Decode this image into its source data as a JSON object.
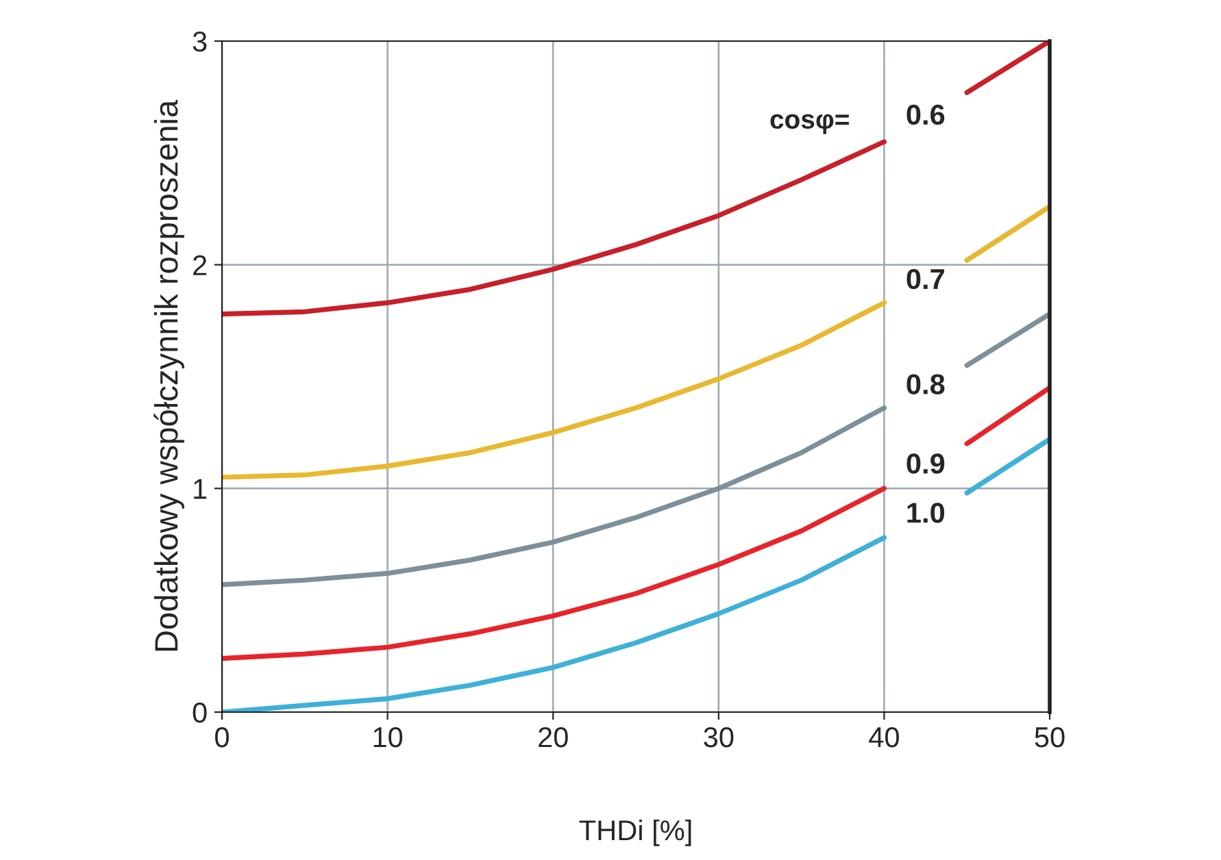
{
  "chart_data": {
    "type": "line",
    "xlabel": "THDi [%]",
    "ylabel": "Dodatkowy współczynnik rozproszenia",
    "x": [
      0,
      5,
      10,
      15,
      20,
      25,
      30,
      35,
      40,
      42.5,
      45,
      50
    ],
    "series": [
      {
        "name": "0.6",
        "color": "#c8202b",
        "values": [
          1.78,
          1.79,
          1.83,
          1.89,
          1.98,
          2.09,
          2.22,
          2.38,
          2.55,
          null,
          2.77,
          3.0
        ]
      },
      {
        "name": "0.7",
        "color": "#e8b830",
        "values": [
          1.05,
          1.06,
          1.1,
          1.16,
          1.25,
          1.36,
          1.49,
          1.64,
          1.83,
          null,
          2.02,
          2.26
        ]
      },
      {
        "name": "0.8",
        "color": "#7f8f9a",
        "values": [
          0.57,
          0.59,
          0.62,
          0.68,
          0.76,
          0.87,
          1.0,
          1.16,
          1.36,
          null,
          1.55,
          1.78
        ]
      },
      {
        "name": "0.9",
        "color": "#e8242b",
        "values": [
          0.24,
          0.26,
          0.29,
          0.35,
          0.43,
          0.53,
          0.66,
          0.81,
          1.0,
          null,
          1.2,
          1.45
        ]
      },
      {
        "name": "1.0",
        "color": "#3fb0d8",
        "values": [
          0.0,
          0.03,
          0.06,
          0.12,
          0.2,
          0.31,
          0.44,
          0.59,
          0.78,
          null,
          0.98,
          1.22
        ]
      }
    ],
    "annotations": [
      "cosφ="
    ],
    "xlim": [
      0,
      50
    ],
    "xticks": [
      0,
      10,
      20,
      30,
      40,
      50
    ],
    "ylim": [
      0,
      3
    ],
    "yticks": [
      0,
      1,
      2,
      3
    ],
    "grid": true,
    "legend": false,
    "marker": "none",
    "line_style": "solid"
  }
}
